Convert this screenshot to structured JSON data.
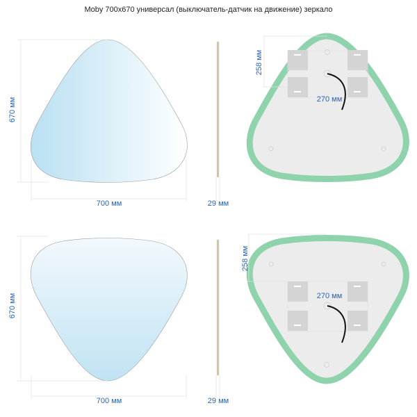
{
  "title": "Moby 700x670 универсал (выключатель-датчик на движение) зеркало",
  "variants": [
    {
      "height_label": "670 мм",
      "width_label": "700 мм",
      "depth_label": "29 мм",
      "mount_height_label": "258 мм",
      "mount_width_label": "270 мм"
    },
    {
      "height_label": "670 мм",
      "width_label": "700 мм",
      "depth_label": "29 мм",
      "mount_height_label": "258 мм",
      "mount_width_label": "270 мм"
    }
  ],
  "colors": {
    "dimension_text": "#2a63b4",
    "led_strip": "#8fd3ad",
    "mirror_tint": "#bfe3f3",
    "back_panel": "#ececec"
  }
}
